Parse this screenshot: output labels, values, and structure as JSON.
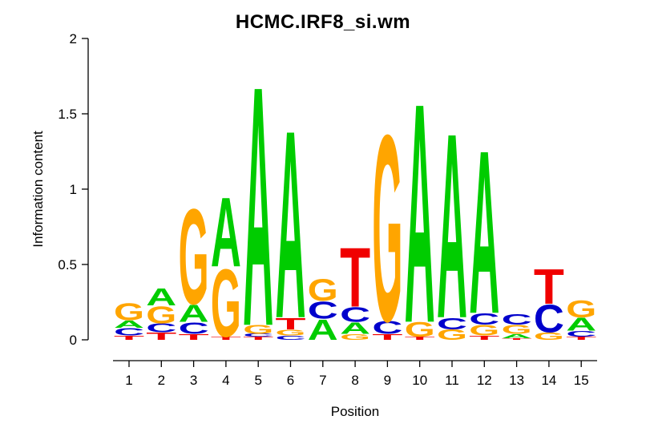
{
  "title": "HCMC.IRF8_si.wm",
  "chart_data": {
    "type": "sequence_logo",
    "title": "HCMC.IRF8_si.wm",
    "xlabel": "Position",
    "ylabel": "Information content",
    "ylim": [
      0,
      2
    ],
    "yticks": [
      "0",
      "0.5",
      "1",
      "1.5",
      "2"
    ],
    "ytick_values": [
      0,
      0.5,
      1,
      1.5,
      2
    ],
    "xticks": [
      "1",
      "2",
      "3",
      "4",
      "5",
      "6",
      "7",
      "8",
      "9",
      "10",
      "11",
      "12",
      "13",
      "14",
      "15"
    ],
    "legend": "none",
    "grid": false,
    "colors": {
      "A": "#00CC00",
      "C": "#0000CC",
      "G": "#FFA500",
      "T": "#F00000"
    },
    "stacks_note": "per position, letters listed bottom-to-top with information content in bits",
    "stacks": [
      [
        {
          "letter": "T",
          "ic": 0.03
        },
        {
          "letter": "C",
          "ic": 0.05
        },
        {
          "letter": "A",
          "ic": 0.05
        },
        {
          "letter": "G",
          "ic": 0.12
        }
      ],
      [
        {
          "letter": "T",
          "ic": 0.05
        },
        {
          "letter": "C",
          "ic": 0.06
        },
        {
          "letter": "G",
          "ic": 0.12
        },
        {
          "letter": "A",
          "ic": 0.12
        }
      ],
      [
        {
          "letter": "T",
          "ic": 0.04
        },
        {
          "letter": "C",
          "ic": 0.08
        },
        {
          "letter": "A",
          "ic": 0.12
        },
        {
          "letter": "G",
          "ic": 0.66
        }
      ],
      [
        {
          "letter": "T",
          "ic": 0.02
        },
        {
          "letter": "G",
          "ic": 0.47
        },
        {
          "letter": "A",
          "ic": 0.48
        }
      ],
      [
        {
          "letter": "T",
          "ic": 0.02
        },
        {
          "letter": "C",
          "ic": 0.02
        },
        {
          "letter": "G",
          "ic": 0.06
        },
        {
          "letter": "A",
          "ic": 1.66
        }
      ],
      [
        {
          "letter": "C",
          "ic": 0.03
        },
        {
          "letter": "G",
          "ic": 0.04
        },
        {
          "letter": "T",
          "ic": 0.08
        },
        {
          "letter": "A",
          "ic": 1.3
        }
      ],
      [
        {
          "letter": "A",
          "ic": 0.14
        },
        {
          "letter": "C",
          "ic": 0.12
        },
        {
          "letter": "G",
          "ic": 0.15
        }
      ],
      [
        {
          "letter": "G",
          "ic": 0.04
        },
        {
          "letter": "A",
          "ic": 0.08
        },
        {
          "letter": "C",
          "ic": 0.1
        },
        {
          "letter": "T",
          "ic": 0.41
        }
      ],
      [
        {
          "letter": "T",
          "ic": 0.04
        },
        {
          "letter": "C",
          "ic": 0.09
        },
        {
          "letter": "G",
          "ic": 1.29
        }
      ],
      [
        {
          "letter": "T",
          "ic": 0.02
        },
        {
          "letter": "G",
          "ic": 0.1
        },
        {
          "letter": "A",
          "ic": 1.52
        }
      ],
      [
        {
          "letter": "G",
          "ic": 0.07
        },
        {
          "letter": "C",
          "ic": 0.08
        },
        {
          "letter": "A",
          "ic": 1.28
        }
      ],
      [
        {
          "letter": "T",
          "ic": 0.03
        },
        {
          "letter": "G",
          "ic": 0.07
        },
        {
          "letter": "C",
          "ic": 0.08
        },
        {
          "letter": "A",
          "ic": 1.13
        }
      ],
      [
        {
          "letter": "T",
          "ic": 0.01
        },
        {
          "letter": "A",
          "ic": 0.03
        },
        {
          "letter": "G",
          "ic": 0.06
        },
        {
          "letter": "C",
          "ic": 0.07
        }
      ],
      [
        {
          "letter": "G",
          "ic": 0.05
        },
        {
          "letter": "C",
          "ic": 0.19
        },
        {
          "letter": "T",
          "ic": 0.24
        }
      ],
      [
        {
          "letter": "T",
          "ic": 0.02
        },
        {
          "letter": "C",
          "ic": 0.04
        },
        {
          "letter": "A",
          "ic": 0.09
        },
        {
          "letter": "G",
          "ic": 0.12
        }
      ]
    ]
  }
}
